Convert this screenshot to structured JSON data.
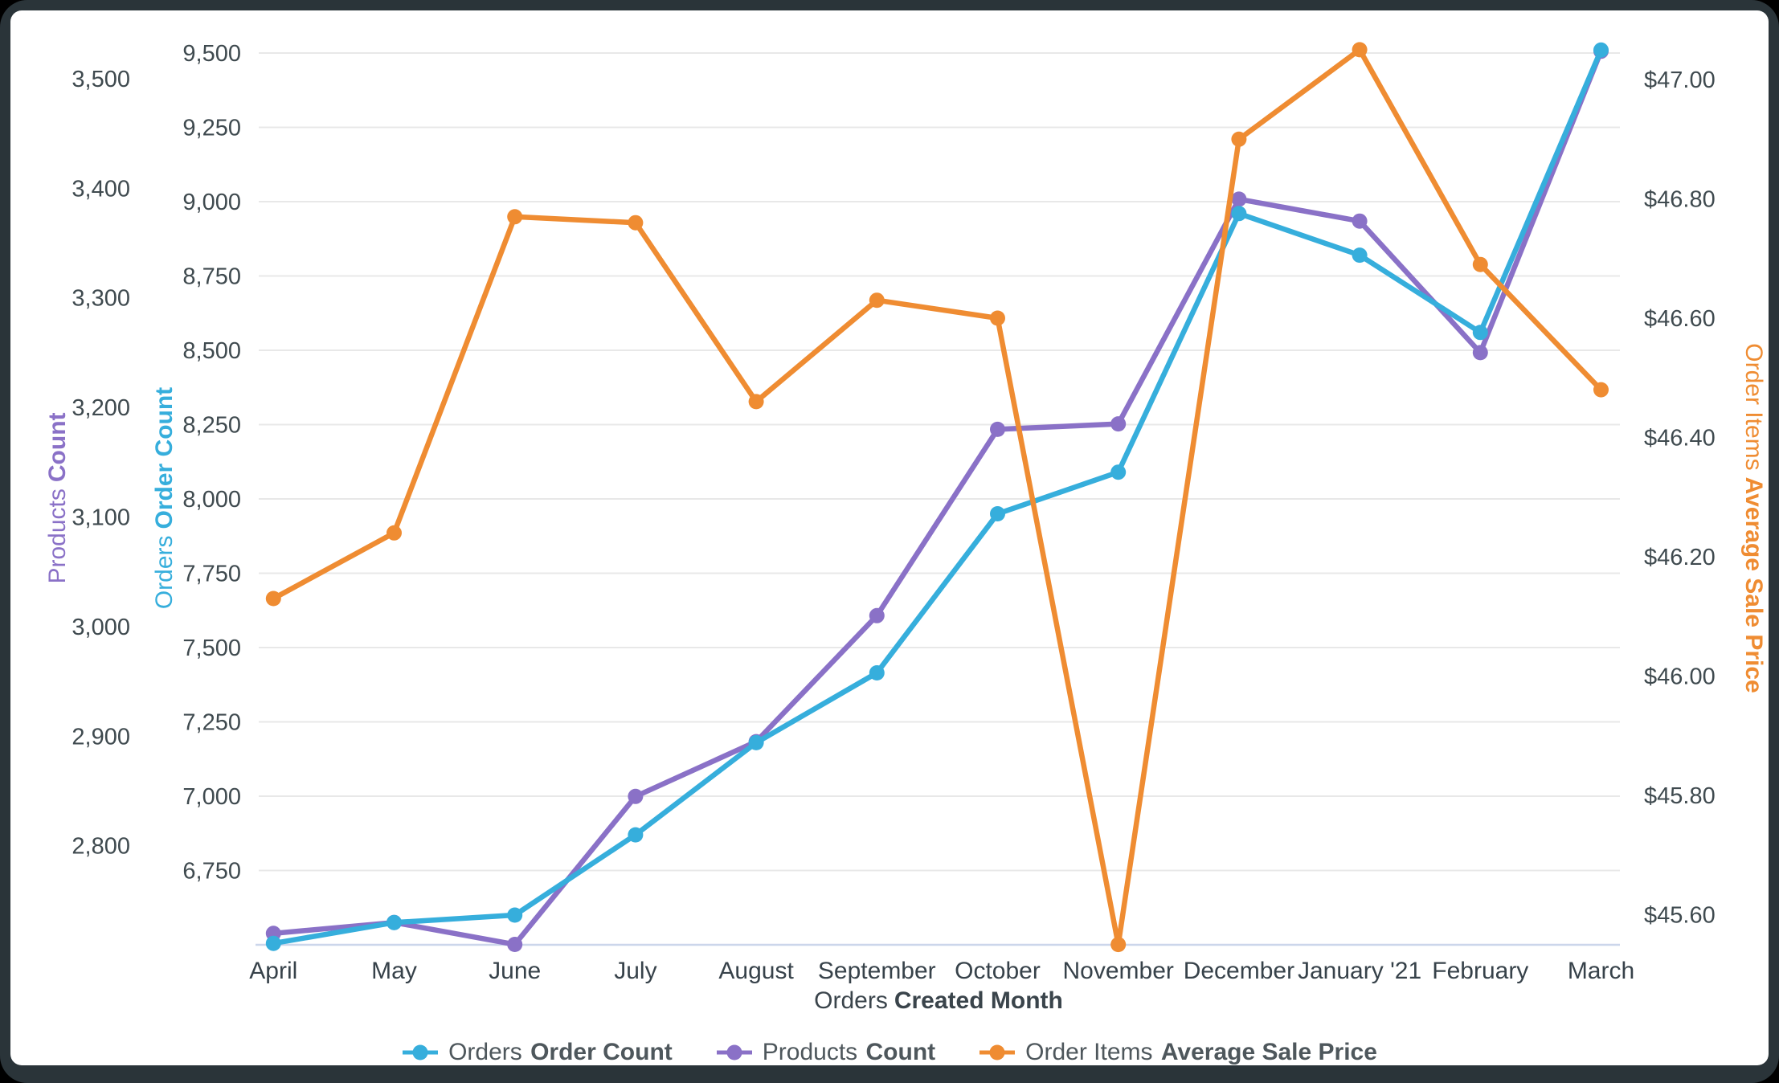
{
  "chart_data": {
    "type": "line",
    "title": "",
    "categories": [
      "April",
      "May",
      "June",
      "July",
      "August",
      "September",
      "October",
      "November",
      "December",
      "January '21",
      "February",
      "March"
    ],
    "xlabel_regular": "Orders",
    "xlabel_bold": "Created Month",
    "series": [
      {
        "name_regular": "Orders",
        "name_bold": "Order Count",
        "color": "#36AEDC",
        "axis": "orders",
        "values": [
          6505,
          6575,
          6600,
          6870,
          7180,
          7415,
          7950,
          8090,
          8960,
          8820,
          8560,
          9510
        ]
      },
      {
        "name_regular": "Products",
        "name_bold": "Count",
        "color": "#8A71C7",
        "axis": "products",
        "values": [
          2720,
          2730,
          2710,
          2845,
          2895,
          3010,
          3180,
          3185,
          3390,
          3370,
          3250,
          3525
        ]
      },
      {
        "name_regular": "Order Items",
        "name_bold": "Average Sale Price",
        "color": "#EF8C32",
        "axis": "price",
        "values": [
          46.13,
          46.24,
          46.77,
          46.76,
          46.46,
          46.63,
          46.6,
          45.55,
          46.9,
          47.05,
          46.69,
          46.48
        ]
      }
    ],
    "axes": {
      "orders": {
        "title_regular": "Orders",
        "title_bold": "Order Count",
        "side": "left-inner",
        "tick_labels": [
          "9,500",
          "9,250",
          "9,000",
          "8,750",
          "8,500",
          "8,250",
          "8,000",
          "7,750",
          "7,500",
          "7,250",
          "7,000",
          "6,750"
        ],
        "ylim": [
          6500,
          9560
        ],
        "gridlines": true
      },
      "products": {
        "title_regular": "Products",
        "title_bold": "Count",
        "side": "left-outer",
        "tick_labels": [
          "3,500",
          "3,400",
          "3,300",
          "3,200",
          "3,100",
          "3,000",
          "2,900",
          "2,800"
        ],
        "ylim": [
          2710,
          3545
        ],
        "gridlines": false
      },
      "price": {
        "title_regular": "Order Items",
        "title_bold": "Average Sale Price",
        "side": "right",
        "tick_labels": [
          "$47.00",
          "$46.80",
          "$46.60",
          "$46.40",
          "$46.20",
          "$46.00",
          "$45.80",
          "$45.60"
        ],
        "ylim": [
          45.55,
          47.08
        ],
        "gridlines": false
      }
    },
    "legend_position": "bottom-center",
    "grid_color": "#E8E8E8",
    "baseline_color": "#CCD6EB",
    "text_color": "#3F4A4F"
  }
}
